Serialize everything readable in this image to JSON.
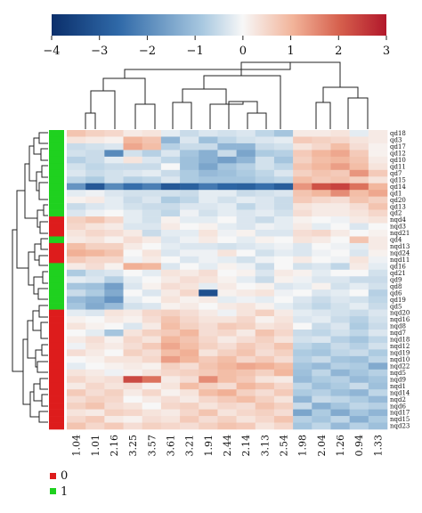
{
  "chart_data": {
    "type": "heatmap",
    "title": "",
    "color_scale": {
      "min": -4,
      "max": 3,
      "ticks": [
        -4,
        -3,
        -2,
        -1,
        0,
        1,
        2,
        3
      ],
      "tick_labels": [
        "−4",
        "−3",
        "−2",
        "−1",
        "0",
        "1",
        "2",
        "3"
      ],
      "colors": {
        "low": "#0b2f6b",
        "mid": "#f7f7f7",
        "high": "#b2182b"
      }
    },
    "columns": [
      "1.04",
      "1.01",
      "2.16",
      "3.25",
      "3.57",
      "3.61",
      "3.21",
      "1.91",
      "2.44",
      "2.14",
      "3.13",
      "2.54",
      "1.98",
      "2.04",
      "1.26",
      "0.94",
      "1.33"
    ],
    "rows": [
      "qd18",
      "qd3",
      "qd17",
      "qd12",
      "qd10",
      "qd11",
      "qd7",
      "qd15",
      "qd14",
      "qd1",
      "qd20",
      "qd13",
      "qd2",
      "nqd4",
      "nqd3",
      "nqd21",
      "qd4",
      "nqd13",
      "nqd24",
      "nqd11",
      "qd16",
      "qd21",
      "qd9",
      "qd8",
      "qd6",
      "qd19",
      "qd5",
      "nqd20",
      "nqd16",
      "nqd8",
      "nqd7",
      "nqd18",
      "nqd12",
      "nqd19",
      "nqd10",
      "nqd22",
      "nqd5",
      "nqd9",
      "nqd1",
      "nqd14",
      "nqd2",
      "nqd6",
      "nqd17",
      "nqd15",
      "nqd23"
    ],
    "row_groups": [
      "1",
      "1",
      "1",
      "1",
      "1",
      "1",
      "1",
      "1",
      "1",
      "1",
      "1",
      "1",
      "1",
      "0",
      "0",
      "0",
      "1",
      "0",
      "0",
      "0",
      "1",
      "1",
      "1",
      "1",
      "1",
      "1",
      "1",
      "0",
      "0",
      "0",
      "0",
      "0",
      "0",
      "0",
      "0",
      "0",
      "0",
      "0",
      "0",
      "0",
      "0",
      "0",
      "0",
      "0",
      "0"
    ],
    "group_legend": [
      {
        "label": "0",
        "color": "#dd1c1c"
      },
      {
        "label": "1",
        "color": "#1fd11f"
      }
    ],
    "values": [
      [
        0.8,
        0.6,
        0.5,
        0.2,
        0.3,
        -0.2,
        -0.5,
        -0.3,
        -0.4,
        -0.3,
        -0.6,
        -0.9,
        0.2,
        0.2,
        0.3,
        -0.2,
        0.2
      ],
      [
        0.3,
        0.2,
        0.1,
        1.0,
        0.8,
        -1.2,
        -0.3,
        -1.0,
        -0.6,
        -0.4,
        -0.3,
        -0.2,
        0.7,
        0.6,
        0.5,
        0.3,
        0.2
      ],
      [
        -0.5,
        -0.4,
        -0.3,
        1.2,
        0.9,
        -0.7,
        -0.5,
        -0.5,
        -1.2,
        -1.2,
        -0.5,
        -0.4,
        0.3,
        0.5,
        0.9,
        0.4,
        0.1
      ],
      [
        -0.4,
        -0.5,
        -2.0,
        -0.4,
        -0.7,
        -0.3,
        -0.9,
        -1.3,
        -0.5,
        -1.5,
        -0.8,
        -0.7,
        0.7,
        1.0,
        1.2,
        0.7,
        0.1
      ],
      [
        -0.7,
        -0.5,
        -0.2,
        0.3,
        -0.3,
        -0.6,
        -1.0,
        -1.3,
        -1.6,
        -1.2,
        -0.4,
        -0.9,
        0.6,
        0.9,
        1.0,
        0.8,
        0.2
      ],
      [
        -0.4,
        -0.6,
        -0.5,
        -0.5,
        -0.5,
        0.0,
        -1.0,
        -1.5,
        -0.9,
        -0.7,
        -0.4,
        -0.6,
        0.8,
        1.0,
        1.3,
        0.9,
        0.3
      ],
      [
        -0.3,
        -0.5,
        -0.4,
        -0.3,
        -0.2,
        -0.5,
        -0.8,
        -1.1,
        -1.0,
        -0.8,
        -0.6,
        -0.3,
        0.6,
        0.8,
        0.7,
        1.4,
        0.7
      ],
      [
        -0.6,
        -0.8,
        -0.4,
        -0.7,
        -0.6,
        -0.3,
        -0.8,
        -0.9,
        -0.9,
        -0.9,
        -0.7,
        -0.6,
        0.9,
        0.7,
        0.8,
        0.6,
        0.3
      ],
      [
        -1.8,
        -3.0,
        -2.0,
        -2.5,
        -2.2,
        -3.0,
        -2.8,
        -2.3,
        -2.7,
        -2.8,
        -2.5,
        -2.9,
        1.4,
        2.2,
        2.4,
        1.8,
        1.0
      ],
      [
        -0.2,
        -0.1,
        -0.3,
        -0.4,
        -0.4,
        -0.4,
        -0.5,
        -0.2,
        -0.2,
        -0.5,
        -0.4,
        -0.3,
        0.8,
        1.0,
        1.5,
        0.9,
        1.2
      ],
      [
        0.1,
        0.2,
        -0.2,
        -0.5,
        -0.3,
        -0.8,
        -0.6,
        -0.2,
        -0.4,
        -0.2,
        -0.3,
        -0.5,
        0.7,
        0.5,
        0.4,
        0.8,
        0.6
      ],
      [
        -0.5,
        -0.3,
        -0.2,
        -0.4,
        -0.5,
        -0.5,
        -0.3,
        -0.3,
        -0.2,
        -0.6,
        -0.3,
        -0.5,
        0.3,
        0.2,
        0.2,
        0.4,
        0.8
      ],
      [
        -0.3,
        -0.1,
        0.0,
        -0.2,
        -0.4,
        -0.6,
        -0.1,
        -0.4,
        -0.2,
        -0.3,
        -0.2,
        -0.4,
        0.4,
        0.2,
        0.2,
        0.3,
        0.5
      ],
      [
        0.6,
        0.8,
        0.5,
        -0.2,
        -0.4,
        0.1,
        -0.2,
        -0.2,
        0.0,
        -0.3,
        -0.5,
        -0.2,
        0.1,
        0.0,
        -0.1,
        0.2,
        0.3
      ],
      [
        0.5,
        0.3,
        0.2,
        -0.3,
        -0.3,
        0.2,
        0.0,
        0.1,
        -0.2,
        -0.3,
        -0.1,
        -0.2,
        0.2,
        -0.2,
        0.0,
        -0.3,
        0.0
      ],
      [
        0.3,
        0.5,
        0.4,
        0.2,
        -0.5,
        -0.2,
        -0.2,
        0.3,
        -0.1,
        0.1,
        -0.3,
        -0.3,
        0.4,
        0.5,
        0.2,
        0.0,
        0.1
      ],
      [
        0.2,
        0.3,
        0.1,
        0.4,
        0.2,
        -0.3,
        -0.1,
        0.2,
        0.0,
        -0.2,
        0.1,
        0.0,
        0.3,
        0.2,
        0.0,
        0.8,
        0.2
      ],
      [
        0.9,
        0.6,
        0.6,
        0.2,
        0.0,
        -0.2,
        -0.3,
        -0.3,
        -0.4,
        -0.3,
        -0.2,
        -0.1,
        -0.3,
        0.0,
        -0.1,
        -0.2,
        0.2
      ],
      [
        1.1,
        1.0,
        0.8,
        0.0,
        0.3,
        -0.3,
        -0.1,
        -0.1,
        0.3,
        0.0,
        -0.4,
        -0.2,
        -0.3,
        -0.1,
        0.0,
        -0.3,
        0.1
      ],
      [
        0.7,
        0.5,
        0.5,
        -0.1,
        0.2,
        0.0,
        -0.3,
        -0.1,
        -0.2,
        -0.4,
        -0.1,
        0.0,
        0.2,
        0.0,
        -0.1,
        0.3,
        -0.1
      ],
      [
        0.2,
        0.4,
        0.1,
        1.1,
        1.0,
        -0.3,
        0.0,
        -0.2,
        0.1,
        -0.1,
        -0.5,
        0.0,
        -0.4,
        -0.3,
        -0.6,
        0.2,
        -0.2
      ],
      [
        -0.8,
        -0.4,
        -0.3,
        0.0,
        -0.2,
        0.3,
        0.2,
        0.4,
        0.0,
        0.1,
        -0.3,
        0.2,
        0.1,
        -0.2,
        0.0,
        0.0,
        -0.4
      ],
      [
        -0.2,
        -0.3,
        -0.7,
        -0.2,
        0.0,
        0.2,
        0.4,
        0.3,
        0.1,
        -0.2,
        -0.5,
        0.1,
        -0.1,
        -0.3,
        -0.3,
        -0.5,
        -0.5
      ],
      [
        -0.9,
        -1.0,
        -1.6,
        -0.3,
        0.1,
        0.4,
        0.3,
        -0.2,
        0.2,
        0.0,
        0.1,
        -0.3,
        -0.2,
        0.1,
        -0.4,
        -0.2,
        -0.4
      ],
      [
        -0.5,
        -0.8,
        -1.4,
        0.0,
        -0.3,
        0.2,
        0.5,
        -3.2,
        0.1,
        0.2,
        0.3,
        -0.1,
        0.0,
        -0.3,
        -0.2,
        0.0,
        -0.7
      ],
      [
        -1.1,
        -1.3,
        -1.8,
        -0.2,
        0.0,
        0.3,
        0.1,
        0.2,
        -0.2,
        -0.1,
        -0.2,
        0.0,
        -0.3,
        -0.5,
        -0.3,
        -0.4,
        -0.6
      ],
      [
        -0.9,
        -1.4,
        -1.1,
        -0.4,
        -0.3,
        0.1,
        0.2,
        0.0,
        0.2,
        0.3,
        0.1,
        -0.2,
        -0.4,
        -0.6,
        -0.4,
        -0.2,
        -0.5
      ],
      [
        -0.2,
        -0.3,
        0.3,
        0.2,
        0.5,
        0.6,
        0.4,
        0.2,
        -0.1,
        0.3,
        0.6,
        0.2,
        -0.2,
        -0.3,
        -0.4,
        -0.5,
        -0.3
      ],
      [
        0.1,
        0.0,
        0.2,
        0.1,
        0.4,
        0.8,
        0.5,
        0.3,
        0.3,
        0.5,
        0.1,
        0.3,
        -0.3,
        -0.2,
        -0.5,
        -0.7,
        -0.4
      ],
      [
        0.3,
        0.1,
        0.0,
        -0.3,
        0.2,
        0.9,
        0.6,
        0.4,
        0.7,
        0.6,
        0.3,
        0.4,
        0.0,
        -0.5,
        -0.3,
        -0.8,
        -0.5
      ],
      [
        0.0,
        -0.2,
        -0.9,
        0.3,
        0.6,
        0.7,
        1.0,
        0.4,
        0.5,
        0.2,
        0.8,
        0.5,
        -0.5,
        -0.6,
        -0.4,
        -0.6,
        -0.3
      ],
      [
        0.2,
        0.4,
        0.1,
        0.5,
        0.3,
        1.0,
        0.8,
        0.5,
        0.2,
        0.4,
        0.6,
        0.3,
        -0.4,
        -0.3,
        -0.7,
        -0.9,
        -0.6
      ],
      [
        -0.1,
        0.3,
        0.2,
        0.4,
        0.7,
        1.2,
        0.9,
        0.6,
        0.4,
        0.7,
        0.5,
        0.8,
        -0.6,
        -0.8,
        -0.5,
        -0.7,
        -0.4
      ],
      [
        0.4,
        0.2,
        0.0,
        0.6,
        0.4,
        0.9,
        1.1,
        0.3,
        0.6,
        0.8,
        0.4,
        0.6,
        -0.8,
        -0.9,
        -0.6,
        -0.5,
        -0.8
      ],
      [
        0.0,
        0.1,
        0.3,
        0.3,
        0.5,
        1.3,
        1.0,
        0.7,
        0.9,
        0.5,
        0.7,
        0.4,
        -0.7,
        -0.5,
        -0.9,
        -1.0,
        -0.6
      ],
      [
        -0.2,
        0.0,
        0.1,
        0.2,
        0.1,
        0.6,
        0.4,
        0.8,
        1.0,
        1.2,
        1.1,
        0.9,
        -0.9,
        -1.1,
        -0.7,
        -0.8,
        -1.4
      ],
      [
        0.3,
        0.2,
        -0.1,
        0.1,
        0.3,
        0.5,
        0.6,
        0.7,
        0.9,
        0.8,
        0.6,
        1.0,
        -1.0,
        -0.6,
        -1.2,
        -0.9,
        -0.7
      ],
      [
        0.5,
        0.3,
        0.4,
        2.3,
        1.8,
        0.2,
        0.4,
        1.5,
        0.9,
        0.7,
        0.3,
        0.2,
        -1.1,
        -0.8,
        -0.7,
        -1.1,
        -0.9
      ],
      [
        0.2,
        0.5,
        0.3,
        0.4,
        0.1,
        0.3,
        0.9,
        0.6,
        0.4,
        1.0,
        0.8,
        0.5,
        -0.6,
        -1.0,
        -0.8,
        -0.5,
        -1.0
      ],
      [
        0.7,
        0.4,
        0.6,
        0.2,
        0.5,
        0.1,
        0.3,
        0.9,
        1.1,
        0.6,
        0.4,
        0.7,
        -0.8,
        -0.7,
        -1.0,
        -1.2,
        -0.6
      ],
      [
        0.4,
        0.6,
        0.5,
        0.0,
        0.2,
        0.4,
        0.2,
        0.5,
        0.7,
        0.9,
        0.6,
        0.3,
        -1.2,
        -0.5,
        -0.6,
        -0.8,
        -1.1
      ],
      [
        0.6,
        0.8,
        0.4,
        0.3,
        0.0,
        0.5,
        0.6,
        0.3,
        0.5,
        0.4,
        0.8,
        0.6,
        -0.5,
        -1.3,
        -0.9,
        -0.6,
        -0.7
      ],
      [
        0.3,
        0.2,
        0.6,
        0.5,
        0.3,
        0.2,
        0.5,
        0.8,
        0.3,
        0.5,
        0.6,
        0.4,
        -1.5,
        -0.8,
        -1.4,
        -0.9,
        -1.2
      ],
      [
        0.5,
        0.7,
        0.2,
        0.1,
        0.4,
        0.3,
        0.7,
        0.4,
        0.6,
        0.3,
        0.5,
        0.8,
        -0.7,
        -0.9,
        -0.6,
        -1.3,
        -0.8
      ],
      [
        0.8,
        0.5,
        0.7,
        0.4,
        0.6,
        0.5,
        0.4,
        0.6,
        0.8,
        0.7,
        0.3,
        0.5,
        -0.9,
        -0.6,
        -1.1,
        -0.7,
        -1.0
      ]
    ]
  }
}
